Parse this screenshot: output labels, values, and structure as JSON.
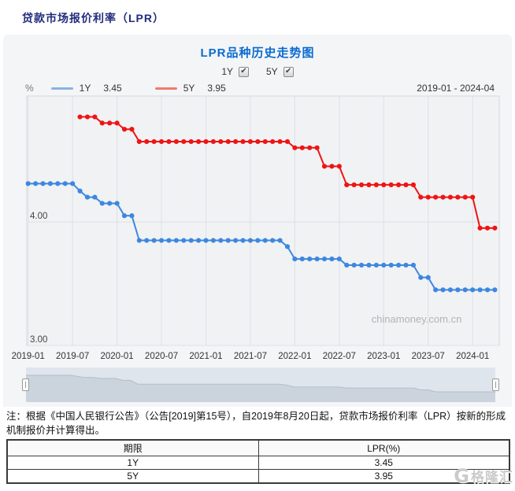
{
  "page_title": "贷款市场报价利率（LPR）",
  "controls": {
    "cb1": {
      "label": "1Y",
      "checked": true,
      "check_glyph": "✔"
    },
    "cb2": {
      "label": "5Y",
      "checked": true,
      "check_glyph": "✔"
    }
  },
  "legend": {
    "unit": "%",
    "y1": {
      "label": "1Y",
      "value": "3.45",
      "swatch_color": "#8ab2e4"
    },
    "y5": {
      "label": "5Y",
      "value": "3.95",
      "swatch_color": "#f2786c"
    },
    "range_label": "2019-01 - 2024-04"
  },
  "chart_data": {
    "type": "line",
    "title": "LPR品种历史走势图",
    "xlabel": "",
    "ylabel": "%",
    "x_start": "2019-01",
    "x_end": "2024-04",
    "months_total": 64,
    "x_tick_labels": [
      "2019-01",
      "2019-07",
      "2020-01",
      "2020-07",
      "2021-01",
      "2021-07",
      "2022-01",
      "2022-07",
      "2023-01",
      "2023-07",
      "2024-01"
    ],
    "x_tick_month_indexes": [
      0,
      6,
      12,
      18,
      24,
      30,
      36,
      42,
      48,
      54,
      60
    ],
    "y_tick_labels": [
      "4.00",
      "3.00"
    ],
    "y_ticks": [
      4.0,
      3.0
    ],
    "ylim": [
      2.99,
      4.98
    ],
    "grid": true,
    "legend_position": "top",
    "watermark": "chinamoney.com.cn",
    "series": [
      {
        "name": "1Y",
        "color": "#3d87e0",
        "latest": 3.45,
        "start_month_index": 0,
        "values": [
          4.31,
          4.31,
          4.31,
          4.31,
          4.31,
          4.31,
          4.31,
          4.25,
          4.2,
          4.2,
          4.15,
          4.15,
          4.15,
          4.05,
          4.05,
          3.85,
          3.85,
          3.85,
          3.85,
          3.85,
          3.85,
          3.85,
          3.85,
          3.85,
          3.85,
          3.85,
          3.85,
          3.85,
          3.85,
          3.85,
          3.85,
          3.85,
          3.85,
          3.85,
          3.85,
          3.8,
          3.7,
          3.7,
          3.7,
          3.7,
          3.7,
          3.7,
          3.7,
          3.65,
          3.65,
          3.65,
          3.65,
          3.65,
          3.65,
          3.65,
          3.65,
          3.65,
          3.65,
          3.55,
          3.55,
          3.45,
          3.45,
          3.45,
          3.45,
          3.45,
          3.45,
          3.45,
          3.45,
          3.45
        ]
      },
      {
        "name": "5Y",
        "color": "#ee1515",
        "latest": 3.95,
        "start_month_index": 7,
        "values": [
          4.85,
          4.85,
          4.85,
          4.8,
          4.8,
          4.8,
          4.75,
          4.75,
          4.65,
          4.65,
          4.65,
          4.65,
          4.65,
          4.65,
          4.65,
          4.65,
          4.65,
          4.65,
          4.65,
          4.65,
          4.65,
          4.65,
          4.65,
          4.65,
          4.65,
          4.65,
          4.65,
          4.65,
          4.65,
          4.6,
          4.6,
          4.6,
          4.6,
          4.45,
          4.45,
          4.45,
          4.3,
          4.3,
          4.3,
          4.3,
          4.3,
          4.3,
          4.3,
          4.3,
          4.3,
          4.3,
          4.2,
          4.2,
          4.2,
          4.2,
          4.2,
          4.2,
          4.2,
          4.2,
          3.95,
          3.95,
          3.95
        ]
      }
    ]
  },
  "note": "注：根据《中国人民银行公告》（公告[2019]第15号），自2019年8月20日起，贷款市场报价利率（LPR）按新的形成机制报价并计算得出。",
  "table": {
    "headers": {
      "c1": "期限",
      "c2": "LPR(%)"
    },
    "rows": [
      {
        "term": "1Y",
        "rate": "3.45"
      },
      {
        "term": "5Y",
        "rate": "3.95"
      }
    ]
  },
  "logo": {
    "mark": "G",
    "text": "格隆汇"
  },
  "colors": {
    "panel_bg": "#f4f5f7",
    "plot_bg": "#f1f2f4",
    "plot_border": "#d4d9de",
    "gridline": "#dce1e6",
    "watermark": "#b3b3b3",
    "nav_bg": "#dfe5ec",
    "nav_fill": "#cbd4dd",
    "nav_line": "#b2bdc8",
    "title_navy": "#222d7c",
    "title_blue": "#0a6bd0"
  }
}
